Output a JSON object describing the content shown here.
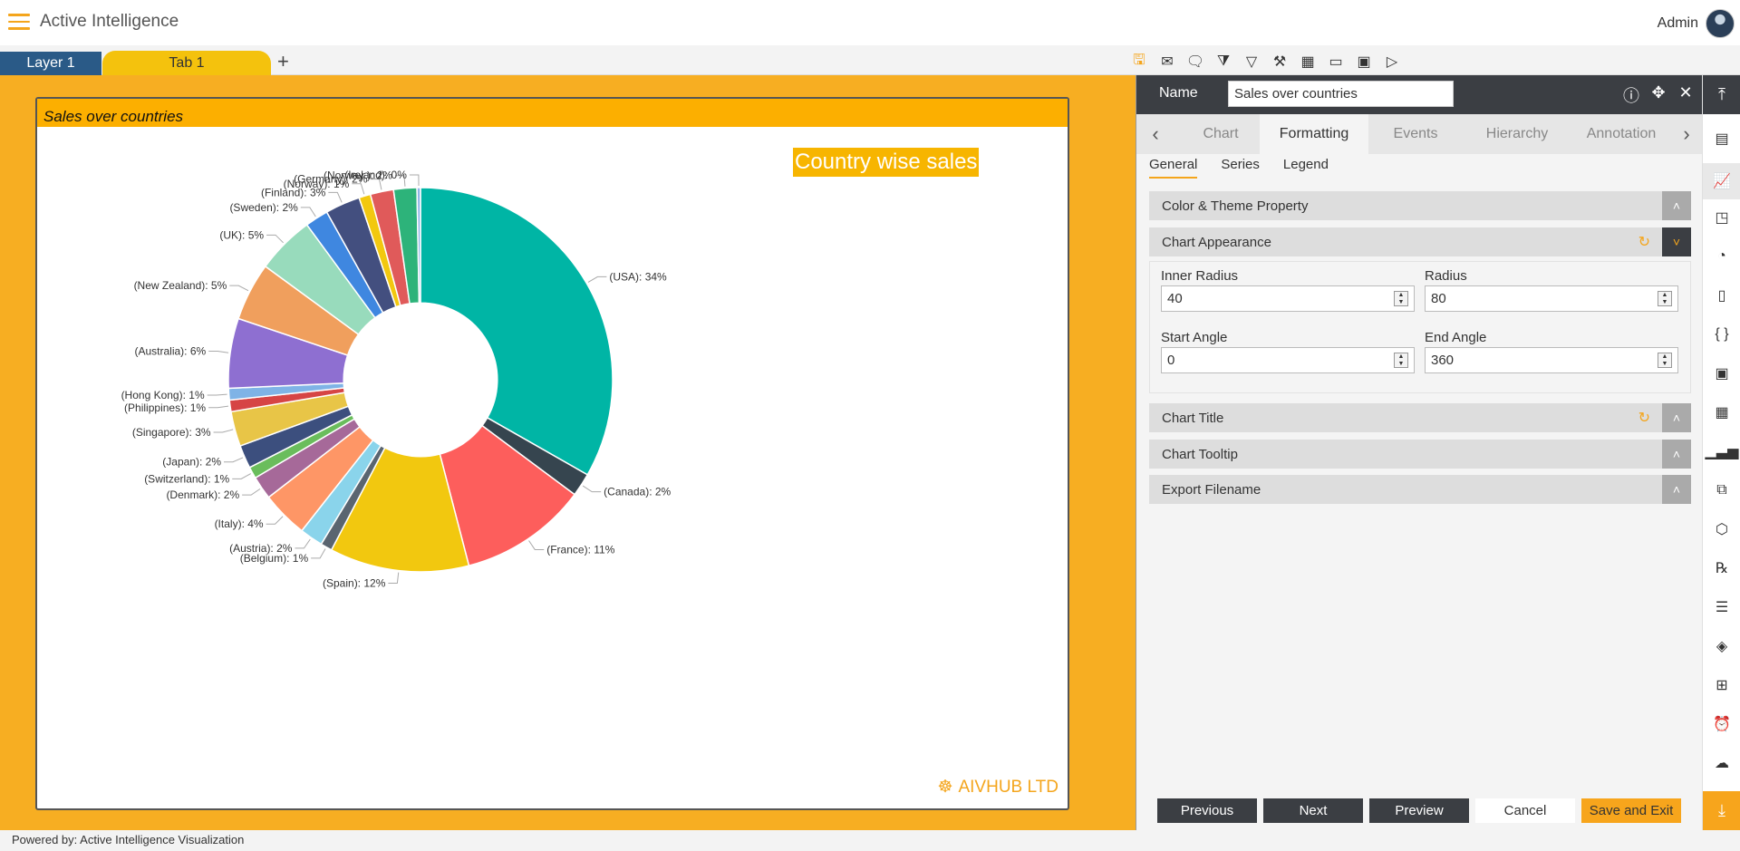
{
  "header": {
    "app_title": "Active Intelligence",
    "user": "Admin"
  },
  "tabs": {
    "layer": "Layer 1",
    "tab": "Tab 1",
    "add": "+"
  },
  "toolbar_icons": [
    "save-icon",
    "mail-icon",
    "comment-icon",
    "clear-filter-icon",
    "filter-icon",
    "tools-icon",
    "table-icon",
    "embed-icon",
    "devices-icon",
    "play-icon"
  ],
  "widget": {
    "title": "Sales over countries",
    "chart_title": "Country wise sales",
    "brand": "AIVHUB LTD"
  },
  "footer": {
    "text": "Powered by: Active Intelligence Visualization"
  },
  "panel": {
    "name_label": "Name",
    "name_value": "Sales over countries",
    "tabs": [
      "Chart",
      "Formatting",
      "Events",
      "Hierarchy",
      "Annotation"
    ],
    "active_tab": "Formatting",
    "subtabs": [
      "General",
      "Series",
      "Legend"
    ],
    "sections": {
      "color_theme": "Color & Theme Property",
      "chart_appearance": "Chart Appearance",
      "chart_title": "Chart Title",
      "chart_tooltip": "Chart Tooltip",
      "export_filename": "Export Filename"
    },
    "fields": {
      "inner_radius": {
        "label": "Inner Radius",
        "value": "40"
      },
      "radius": {
        "label": "Radius",
        "value": "80"
      },
      "start_angle": {
        "label": "Start Angle",
        "value": "0"
      },
      "end_angle": {
        "label": "End Angle",
        "value": "360"
      }
    },
    "buttons": {
      "previous": "Previous",
      "next": "Next",
      "preview": "Preview",
      "cancel": "Cancel",
      "save_exit": "Save and Exit"
    }
  },
  "chart_data": {
    "type": "pie",
    "title": "Country wise sales",
    "inner_radius_pct": 40,
    "slices": [
      {
        "label": "(USA): 34%",
        "value": 34,
        "color": "#00b5a5"
      },
      {
        "label": "(Canada): 2%",
        "value": 2,
        "color": "#36454f"
      },
      {
        "label": "(France): 11%",
        "value": 11,
        "color": "#fd5e5c"
      },
      {
        "label": "(Spain): 12%",
        "value": 12,
        "color": "#f2c80f"
      },
      {
        "label": "(Belgium): 1%",
        "value": 1,
        "color": "#5a6570"
      },
      {
        "label": "(Austria): 2%",
        "value": 2,
        "color": "#8ad4eb"
      },
      {
        "label": "(Italy): 4%",
        "value": 4,
        "color": "#fe9666"
      },
      {
        "label": "(Denmark): 2%",
        "value": 2,
        "color": "#a66999"
      },
      {
        "label": "(Switzerland): 1%",
        "value": 1,
        "color": "#6abd5c"
      },
      {
        "label": "(Japan): 2%",
        "value": 2,
        "color": "#3c4f7e"
      },
      {
        "label": "(Singapore): 3%",
        "value": 3,
        "color": "#e8c547"
      },
      {
        "label": "(Philippines): 1%",
        "value": 1,
        "color": "#d64545"
      },
      {
        "label": "(Hong Kong): 1%",
        "value": 1,
        "color": "#7fb3e6"
      },
      {
        "label": "(Australia): 6%",
        "value": 6,
        "color": "#8e6fd1"
      },
      {
        "label": "(New Zealand): 5%",
        "value": 5,
        "color": "#f09f5d"
      },
      {
        "label": "(UK): 5%",
        "value": 5,
        "color": "#98dbbc"
      },
      {
        "label": "(Sweden): 2%",
        "value": 2,
        "color": "#3f87e0"
      },
      {
        "label": "(Finland): 3%",
        "value": 3,
        "color": "#434f7f"
      },
      {
        "label": "(Norway): 1%",
        "value": 1,
        "color": "#f2c80f"
      },
      {
        "label": "(Germany): 2%",
        "value": 2,
        "color": "#e05a5a"
      },
      {
        "label": "(Norway ): 2%",
        "value": 2,
        "color": "#2db37a"
      },
      {
        "label": "(Ireland): 0%",
        "value": 0.3,
        "color": "#8fb4e8"
      }
    ]
  },
  "rail_icons": [
    "scroll-top-icon",
    "card-icon",
    "chart-edit-icon",
    "map-icon",
    "report-icon",
    "document-icon",
    "code-icon",
    "image-icon",
    "table-edit-icon",
    "bar-chart-icon",
    "copy-icon",
    "cubes-icon",
    "rx-icon",
    "notes-icon",
    "layers-icon",
    "add-widget-icon",
    "alarm-icon",
    "cloud-upload-icon",
    "scroll-bottom-icon"
  ]
}
